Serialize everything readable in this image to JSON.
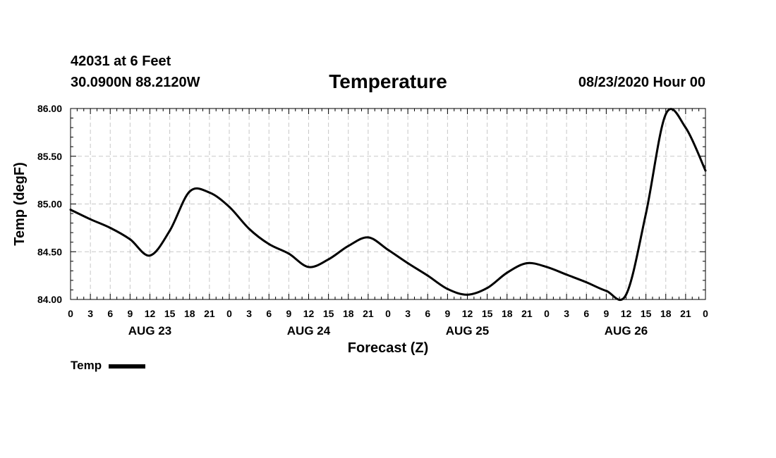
{
  "header": {
    "station": "42031 at 6 Feet",
    "coords": "30.0900N 88.2120W",
    "date": "08/23/2020 Hour 00"
  },
  "chart_data": {
    "type": "line",
    "title": "Temperature",
    "xlabel": "Forecast (Z)",
    "ylabel": "Temp (degF)",
    "x_unit": "forecast hour",
    "xlim": [
      0,
      96
    ],
    "ylim": [
      84.0,
      86.0
    ],
    "y_ticks": [
      "84.00",
      "84.50",
      "85.00",
      "85.50",
      "86.00"
    ],
    "y_tick_values": [
      84.0,
      84.5,
      85.0,
      85.5,
      86.0
    ],
    "x_ticks": [
      {
        "hour": 0,
        "label": "0"
      },
      {
        "hour": 3,
        "label": "3"
      },
      {
        "hour": 6,
        "label": "6"
      },
      {
        "hour": 9,
        "label": "9"
      },
      {
        "hour": 12,
        "label": "12"
      },
      {
        "hour": 15,
        "label": "15"
      },
      {
        "hour": 18,
        "label": "18"
      },
      {
        "hour": 21,
        "label": "21"
      },
      {
        "hour": 24,
        "label": "0"
      },
      {
        "hour": 27,
        "label": "3"
      },
      {
        "hour": 30,
        "label": "6"
      },
      {
        "hour": 33,
        "label": "9"
      },
      {
        "hour": 36,
        "label": "12"
      },
      {
        "hour": 39,
        "label": "15"
      },
      {
        "hour": 42,
        "label": "18"
      },
      {
        "hour": 45,
        "label": "21"
      },
      {
        "hour": 48,
        "label": "0"
      },
      {
        "hour": 51,
        "label": "3"
      },
      {
        "hour": 54,
        "label": "6"
      },
      {
        "hour": 57,
        "label": "9"
      },
      {
        "hour": 60,
        "label": "12"
      },
      {
        "hour": 63,
        "label": "15"
      },
      {
        "hour": 66,
        "label": "18"
      },
      {
        "hour": 69,
        "label": "21"
      },
      {
        "hour": 72,
        "label": "0"
      },
      {
        "hour": 75,
        "label": "3"
      },
      {
        "hour": 78,
        "label": "6"
      },
      {
        "hour": 81,
        "label": "9"
      },
      {
        "hour": 84,
        "label": "12"
      },
      {
        "hour": 87,
        "label": "15"
      },
      {
        "hour": 90,
        "label": "18"
      },
      {
        "hour": 93,
        "label": "21"
      },
      {
        "hour": 96,
        "label": "0"
      }
    ],
    "day_labels": [
      {
        "hour": 12,
        "label": "AUG 23"
      },
      {
        "hour": 36,
        "label": "AUG 24"
      },
      {
        "hour": 60,
        "label": "AUG 25"
      },
      {
        "hour": 84,
        "label": "AUG 26"
      }
    ],
    "grid": true,
    "legend_position": "bottom-left",
    "series": [
      {
        "name": "Temp",
        "color": "#000000",
        "x": [
          0,
          3,
          6,
          9,
          12,
          15,
          18,
          21,
          24,
          27,
          30,
          33,
          36,
          39,
          42,
          45,
          48,
          51,
          54,
          57,
          60,
          63,
          66,
          69,
          72,
          75,
          78,
          81,
          84,
          87,
          90,
          93,
          96
        ],
        "values": [
          84.94,
          84.84,
          84.75,
          84.63,
          84.46,
          84.72,
          85.13,
          85.12,
          84.97,
          84.74,
          84.58,
          84.48,
          84.34,
          84.42,
          84.56,
          84.65,
          84.52,
          84.38,
          84.25,
          84.11,
          84.05,
          84.12,
          84.28,
          84.38,
          84.34,
          84.26,
          84.18,
          84.09,
          84.05,
          84.9,
          85.94,
          85.8,
          85.35
        ]
      }
    ]
  }
}
